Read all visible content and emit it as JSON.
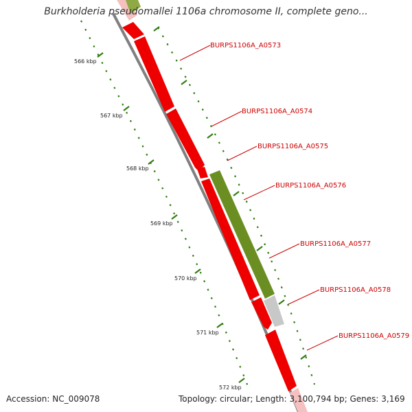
{
  "title": "Burkholderia pseudomallei 1106a chromosome II, complete geno...",
  "footer": {
    "accession": "Accession: NC_009078",
    "info": "Topology: circular; Length: 3,100,794 bp; Genes: 3,169"
  },
  "colors": {
    "gene_forward": "#ee0000",
    "gene_highlight": "#6b8e23",
    "gene_gray": "#c8c8c8",
    "backbone": "#808080",
    "ticks": "#2e7d0f",
    "gene_label": "#cc0000"
  },
  "scale_ticks": [
    "566 kbp",
    "567 kbp",
    "568 kbp",
    "569 kbp",
    "570 kbp",
    "571 kbp",
    "572 kbp"
  ],
  "gene_labels": [
    "BURPS1106A_A0573",
    "BURPS1106A_A0574",
    "BURPS1106A_A0575",
    "BURPS1106A_A0576",
    "BURPS1106A_A0577",
    "BURPS1106A_A0578",
    "BURPS1106A_A0579"
  ]
}
